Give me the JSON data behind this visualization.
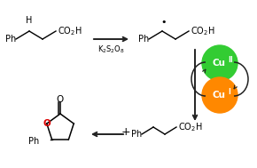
{
  "bg_color": "#ffffff",
  "cu2_color": "#33cc33",
  "cu1_color": "#ff8800",
  "arrow_color": "#222222",
  "o_color": "#dd0000",
  "reagent": "K$_2$S$_2$O$_8$",
  "plus_sign": "+",
  "radical_dot": "•",
  "co2h": "CO$_2$H",
  "ph": "Ph",
  "fs": 7.0
}
